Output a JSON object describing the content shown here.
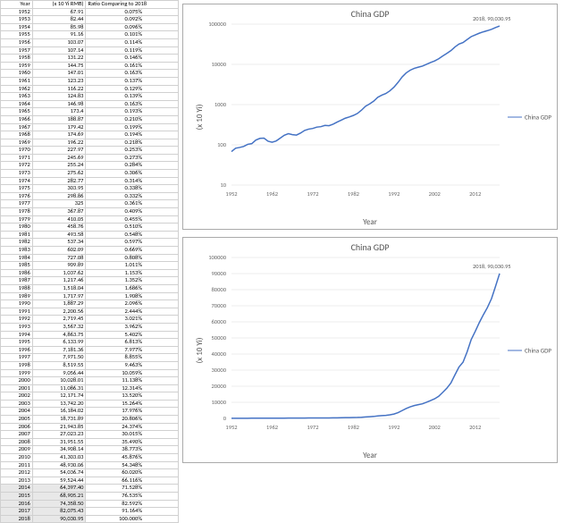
{
  "table": {
    "headers": [
      "Year",
      "(x 10 Yi RMB)",
      "Ratio Comparing to 2018"
    ],
    "rows": [
      [
        "1952",
        "67.91",
        "0.075%"
      ],
      [
        "1953",
        "82.44",
        "0.092%"
      ],
      [
        "1954",
        "85.98",
        "0.096%"
      ],
      [
        "1955",
        "91.16",
        "0.101%"
      ],
      [
        "1956",
        "103.07",
        "0.114%"
      ],
      [
        "1957",
        "107.14",
        "0.119%"
      ],
      [
        "1958",
        "131.22",
        "0.146%"
      ],
      [
        "1959",
        "144.75",
        "0.161%"
      ],
      [
        "1960",
        "147.01",
        "0.163%"
      ],
      [
        "1961",
        "123.23",
        "0.137%"
      ],
      [
        "1962",
        "116.22",
        "0.129%"
      ],
      [
        "1963",
        "124.83",
        "0.139%"
      ],
      [
        "1964",
        "146.98",
        "0.163%"
      ],
      [
        "1965",
        "173.4",
        "0.193%"
      ],
      [
        "1966",
        "188.87",
        "0.210%"
      ],
      [
        "1967",
        "179.42",
        "0.199%"
      ],
      [
        "1968",
        "174.69",
        "0.194%"
      ],
      [
        "1969",
        "196.22",
        "0.218%"
      ],
      [
        "1970",
        "227.97",
        "0.253%"
      ],
      [
        "1971",
        "245.69",
        "0.273%"
      ],
      [
        "1972",
        "255.24",
        "0.284%"
      ],
      [
        "1973",
        "275.62",
        "0.306%"
      ],
      [
        "1974",
        "282.77",
        "0.314%"
      ],
      [
        "1975",
        "303.95",
        "0.338%"
      ],
      [
        "1976",
        "298.86",
        "0.332%"
      ],
      [
        "1977",
        "325",
        "0.361%"
      ],
      [
        "1978",
        "367.87",
        "0.409%"
      ],
      [
        "1979",
        "410.05",
        "0.455%"
      ],
      [
        "1980",
        "458.76",
        "0.510%"
      ],
      [
        "1981",
        "493.58",
        "0.548%"
      ],
      [
        "1982",
        "537.34",
        "0.597%"
      ],
      [
        "1983",
        "602.09",
        "0.669%"
      ],
      [
        "1984",
        "727.08",
        "0.808%"
      ],
      [
        "1985",
        "909.89",
        "1.011%"
      ],
      [
        "1986",
        "1,037.62",
        "1.153%"
      ],
      [
        "1987",
        "1,217.46",
        "1.352%"
      ],
      [
        "1988",
        "1,518.04",
        "1.686%"
      ],
      [
        "1989",
        "1,717.97",
        "1.908%"
      ],
      [
        "1990",
        "1,887.29",
        "2.096%"
      ],
      [
        "1991",
        "2,200.56",
        "2.444%"
      ],
      [
        "1992",
        "2,719.45",
        "3.021%"
      ],
      [
        "1993",
        "3,567.32",
        "3.962%"
      ],
      [
        "1994",
        "4,863.75",
        "5.402%"
      ],
      [
        "1995",
        "6,133.99",
        "6.813%"
      ],
      [
        "1996",
        "7,181.36",
        "7.977%"
      ],
      [
        "1997",
        "7,971.50",
        "8.855%"
      ],
      [
        "1998",
        "8,519.55",
        "9.463%"
      ],
      [
        "1999",
        "9,056.44",
        "10.059%"
      ],
      [
        "2000",
        "10,028.01",
        "11.138%"
      ],
      [
        "2001",
        "11,086.31",
        "12.314%"
      ],
      [
        "2002",
        "12,171.74",
        "13.520%"
      ],
      [
        "2003",
        "13,742.20",
        "15.264%"
      ],
      [
        "2004",
        "16,184.02",
        "17.976%"
      ],
      [
        "2005",
        "18,731.89",
        "20.806%"
      ],
      [
        "2006",
        "21,943.85",
        "24.374%"
      ],
      [
        "2007",
        "27,023.23",
        "30.015%"
      ],
      [
        "2008",
        "31,951.55",
        "35.490%"
      ],
      [
        "2009",
        "34,908.14",
        "38.773%"
      ],
      [
        "2010",
        "41,303.03",
        "45.876%"
      ],
      [
        "2011",
        "48,930.06",
        "54.348%"
      ],
      [
        "2012",
        "54,036.74",
        "60.020%"
      ],
      [
        "2013",
        "59,524.44",
        "66.116%"
      ],
      [
        "2014",
        "64,397.40",
        "71.528%"
      ],
      [
        "2015",
        "68,905.21",
        "76.535%"
      ],
      [
        "2016",
        "74,358.50",
        "82.592%"
      ],
      [
        "2017",
        "82,075.43",
        "91.164%"
      ],
      [
        "2018",
        "90,030.95",
        "100.000%"
      ]
    ],
    "highlight_start": "2014"
  },
  "charts": {
    "common": {
      "x_start": 1952,
      "x_end": 2018,
      "x_ticks": [
        1952,
        1962,
        1972,
        1982,
        1992,
        2002,
        2012
      ],
      "series_color": "#4472c4",
      "grid_color": "#d9d9d9",
      "legend_label": "China GDP",
      "xlabel": "Year",
      "ylabel": "(x 10 Yi)",
      "callout": "2018, 90,030.95",
      "title": "China GDP"
    },
    "log": {
      "y_log_ticks": [
        10,
        100,
        1000,
        10000,
        100000
      ]
    },
    "linear": {
      "y_ticks": [
        0,
        10000,
        20000,
        30000,
        40000,
        50000,
        60000,
        70000,
        80000,
        90000,
        100000
      ]
    },
    "values": [
      67.91,
      82.44,
      85.98,
      91.16,
      103.07,
      107.14,
      131.22,
      144.75,
      147.01,
      123.23,
      116.22,
      124.83,
      146.98,
      173.4,
      188.87,
      179.42,
      174.69,
      196.22,
      227.97,
      245.69,
      255.24,
      275.62,
      282.77,
      303.95,
      298.86,
      325,
      367.87,
      410.05,
      458.76,
      493.58,
      537.34,
      602.09,
      727.08,
      909.89,
      1037.62,
      1217.46,
      1518.04,
      1717.97,
      1887.29,
      2200.56,
      2719.45,
      3567.32,
      4863.75,
      6133.99,
      7181.36,
      7971.5,
      8519.55,
      9056.44,
      10028.01,
      11086.31,
      12171.74,
      13742.2,
      16184.02,
      18731.89,
      21943.85,
      27023.23,
      31951.55,
      34908.14,
      41303.03,
      48930.06,
      54036.74,
      59524.44,
      64397.4,
      68905.21,
      74358.5,
      82075.43,
      90030.95
    ]
  }
}
